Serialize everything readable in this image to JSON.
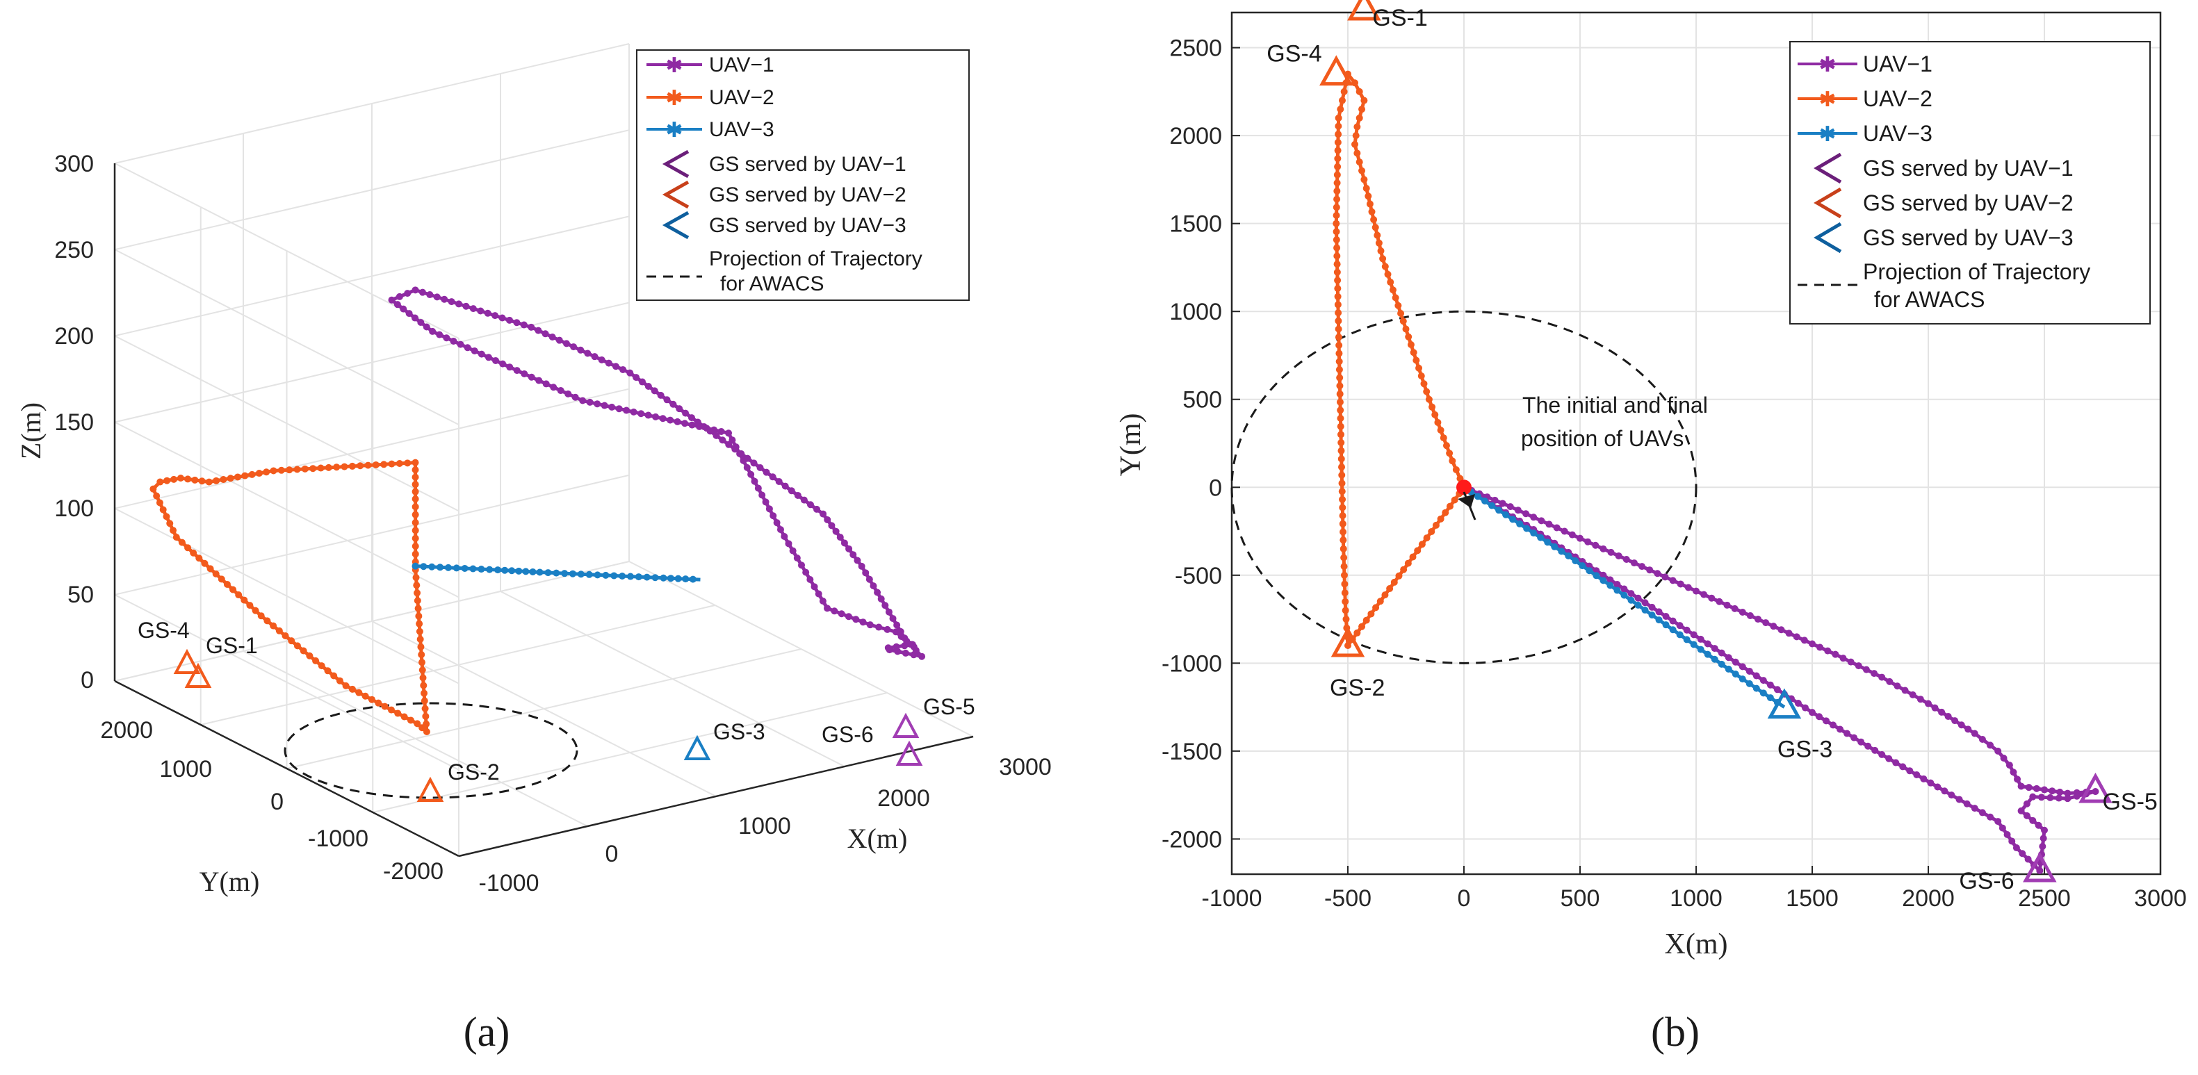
{
  "colors": {
    "uav1": "#8f2aa3",
    "uav2": "#f25a1c",
    "uav3": "#1a7fc4",
    "gs_uav1": "#a13db3",
    "gs_uav2": "#f25a1c",
    "gs_uav3": "#1a7fc4",
    "legend_gs1": "#6b1f7a",
    "legend_gs2": "#c8401a",
    "legend_gs3": "#0e5f9e",
    "start_marker": "#ff1a1a",
    "grid": "#e3e3e3",
    "axis": "#262626",
    "projection": "#1a1a1a"
  },
  "legend": {
    "uav1": "UAV−1",
    "uav2": "UAV−2",
    "uav3": "UAV−3",
    "gs1": "GS served by UAV−1",
    "gs2": "GS served by UAV−2",
    "gs3": "GS served by UAV−3",
    "proj_line1": "Projection of Trajectory",
    "proj_line2": "for AWACS"
  },
  "panel_a": {
    "label": "(a)"
  },
  "panel_b": {
    "label": "(b)"
  },
  "chart_data": [
    {
      "type": "line",
      "panel": "(a)",
      "projection": "3d",
      "xlabel": "X(m)",
      "ylabel": "Y(m)",
      "zlabel": "Z(m)",
      "xlim": [
        -1000,
        3000
      ],
      "ylim": [
        -2000,
        2000
      ],
      "zlim": [
        0,
        300
      ],
      "x_ticks": [
        "-1000",
        "0",
        "1000",
        "2000",
        "3000"
      ],
      "y_ticks": [
        "-2000",
        "-1000",
        "0",
        "1000",
        "2000"
      ],
      "z_ticks": [
        "0",
        "50",
        "100",
        "150",
        "200",
        "250",
        "300"
      ],
      "grid": true,
      "legend_position": "top-right",
      "series": [
        {
          "name": "UAV−1",
          "x": [
            0,
            -50,
            200,
            600,
            1000,
            1400,
            1800,
            2100,
            2200,
            2300,
            2500,
            2600,
            2650,
            2700,
            2720,
            2700,
            2500,
            2450,
            2480,
            2400,
            2200,
            2000,
            1500,
            1000,
            500,
            0
          ],
          "y": [
            0,
            200,
            100,
            -200,
            -450,
            -700,
            -950,
            -1150,
            -1250,
            -1350,
            -1550,
            -1700,
            -1750,
            -1740,
            -1730,
            -1745,
            -1760,
            -1850,
            -2180,
            -2100,
            -1900,
            -1750,
            -1400,
            -1000,
            -600,
            0
          ],
          "z": [
            260,
            250,
            230,
            210,
            190,
            180,
            170,
            110,
            90,
            70,
            62,
            60,
            55,
            52,
            50,
            52,
            54,
            56,
            60,
            70,
            110,
            140,
            180,
            220,
            245,
            260
          ]
        },
        {
          "name": "UAV−2",
          "x": [
            0,
            -200,
            -400,
            -500,
            -520,
            -540,
            -530,
            -520,
            -500,
            -480,
            -420,
            -400,
            -300,
            -150,
            0
          ],
          "y": [
            0,
            -300,
            -600,
            -880,
            -800,
            0,
            1000,
            2000,
            2300,
            2250,
            2100,
            1800,
            1200,
            600,
            0
          ],
          "z": [
            160,
            150,
            120,
            35,
            38,
            40,
            55,
            75,
            95,
            100,
            105,
            110,
            130,
            145,
            160
          ]
        },
        {
          "name": "UAV−3",
          "x": [
            0,
            200,
            400,
            600,
            800,
            1000,
            1200,
            1380
          ],
          "y": [
            0,
            -180,
            -360,
            -550,
            -730,
            -910,
            -1090,
            -1250
          ],
          "z": [
            100,
            100,
            100,
            100,
            100,
            100,
            100,
            100
          ]
        }
      ],
      "ground_stations": [
        {
          "label": "GS-1",
          "x": -430,
          "y": 2720,
          "served_by": "UAV−2"
        },
        {
          "label": "GS-4",
          "x": -550,
          "y": 2350,
          "served_by": "UAV−2"
        },
        {
          "label": "GS-2",
          "x": -500,
          "y": -900,
          "served_by": "UAV−2"
        },
        {
          "label": "GS-3",
          "x": 1380,
          "y": -1250,
          "served_by": "UAV−3"
        },
        {
          "label": "GS-5",
          "x": 2720,
          "y": -1730,
          "served_by": "UAV−1"
        },
        {
          "label": "GS-6",
          "x": 2480,
          "y": -2180,
          "served_by": "UAV−1"
        }
      ],
      "awacs_projection": {
        "center_x": 0,
        "center_y": 0,
        "radius": 1000
      }
    },
    {
      "type": "line",
      "panel": "(b)",
      "xlabel": "X(m)",
      "ylabel": "Y(m)",
      "xlim": [
        -1000,
        3000
      ],
      "ylim": [
        -2200,
        2700
      ],
      "x_ticks": [
        -1000,
        -500,
        0,
        500,
        1000,
        1500,
        2000,
        2500,
        3000
      ],
      "y_ticks": [
        -2000,
        -1500,
        -1000,
        -500,
        0,
        500,
        1000,
        1500,
        2000,
        2500
      ],
      "grid": true,
      "legend_position": "top-right",
      "annotation": {
        "line1": "The initial and final",
        "line2": "position of UAVs",
        "x": 0,
        "y": 0
      },
      "series": [
        {
          "name": "UAV−1",
          "x": [
            0,
            200,
            400,
            600,
            800,
            1000,
            1200,
            1400,
            1600,
            1800,
            2000,
            2200,
            2300,
            2350,
            2400,
            2600,
            2720,
            2600,
            2450,
            2400,
            2500,
            2480,
            2380,
            2300,
            2100,
            1800,
            1500,
            1200,
            900,
            600,
            300,
            0
          ],
          "y": [
            0,
            -110,
            -230,
            -350,
            -470,
            -590,
            -710,
            -830,
            -950,
            -1080,
            -1230,
            -1400,
            -1500,
            -1580,
            -1700,
            -1740,
            -1730,
            -1770,
            -1760,
            -1840,
            -1950,
            -2180,
            -2050,
            -1900,
            -1750,
            -1520,
            -1280,
            -1020,
            -760,
            -500,
            -240,
            0
          ]
        },
        {
          "name": "UAV−2",
          "x": [
            0,
            -100,
            -200,
            -300,
            -400,
            -500,
            -510,
            -520,
            -530,
            -540,
            -550,
            -540,
            -500,
            -470,
            -430,
            -460,
            -470,
            -420,
            -350,
            -250,
            -150,
            -50,
            0
          ],
          "y": [
            0,
            -180,
            -360,
            -540,
            -720,
            -900,
            -700,
            -300,
            300,
            900,
            1500,
            2100,
            2350,
            2300,
            2200,
            2050,
            1950,
            1700,
            1300,
            900,
            500,
            150,
            0
          ]
        },
        {
          "name": "UAV−3",
          "x": [
            0,
            150,
            300,
            450,
            600,
            750,
            900,
            1050,
            1200,
            1380
          ],
          "y": [
            0,
            -130,
            -260,
            -390,
            -530,
            -670,
            -810,
            -950,
            -1090,
            -1250
          ]
        }
      ],
      "ground_stations": [
        {
          "label": "GS-1",
          "x": -430,
          "y": 2720,
          "served_by": "UAV−2"
        },
        {
          "label": "GS-4",
          "x": -550,
          "y": 2350,
          "served_by": "UAV−2"
        },
        {
          "label": "GS-2",
          "x": -500,
          "y": -900,
          "served_by": "UAV−2"
        },
        {
          "label": "GS-3",
          "x": 1380,
          "y": -1250,
          "served_by": "UAV−3"
        },
        {
          "label": "GS-5",
          "x": 2720,
          "y": -1730,
          "served_by": "UAV−1"
        },
        {
          "label": "GS-6",
          "x": 2480,
          "y": -2180,
          "served_by": "UAV−1"
        }
      ],
      "awacs_projection": {
        "center_x": 0,
        "center_y": 0,
        "radius": 1000
      }
    }
  ]
}
